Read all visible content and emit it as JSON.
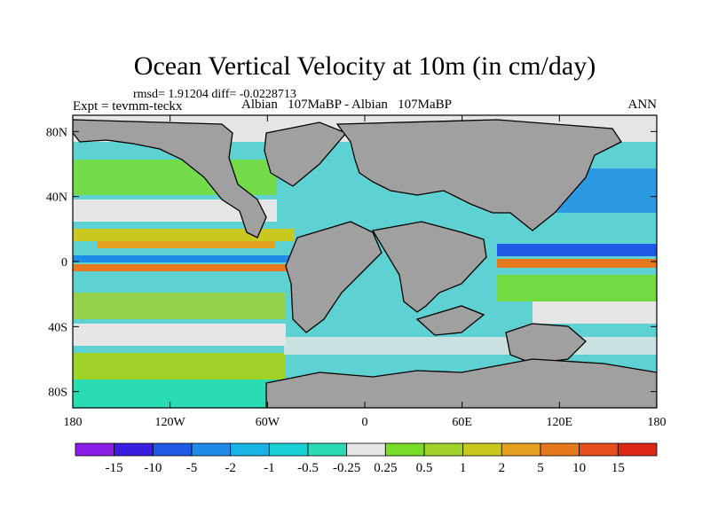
{
  "chart_data": {
    "type": "heatmap",
    "title": "Ocean Vertical Velocity at 10m (in cm/day)",
    "stats_text": "rmsd= 1.91204 diff= -0.0228713",
    "left_label": "Expt = tevmm-teckx",
    "center_label": "Albian   107MaBP - Albian   107MaBP",
    "right_label": "ANN",
    "x_ticks": [
      "180",
      "120W",
      "60W",
      "0",
      "60E",
      "120E",
      "180"
    ],
    "y_ticks": [
      "80N",
      "40N",
      "0",
      "40S",
      "80S"
    ],
    "x_range": [
      -180,
      180
    ],
    "y_range": [
      -90,
      90
    ],
    "colorbar": {
      "labels": [
        "-15",
        "-10",
        "-5",
        "-2",
        "-1",
        "-0.5",
        "-0.25",
        "0.25",
        "0.5",
        "1",
        "2",
        "5",
        "10",
        "15"
      ],
      "colors": [
        "#8a1ee6",
        "#3a1ee0",
        "#1e5ae6",
        "#1e8ce6",
        "#18b4e6",
        "#18d2d8",
        "#2adcb4",
        "#e6e6e6",
        "#78dc28",
        "#a0d228",
        "#c8c81e",
        "#e6a01e",
        "#e6781e",
        "#e6501e",
        "#dc2814"
      ]
    },
    "land_color": "#a0a0a0"
  }
}
